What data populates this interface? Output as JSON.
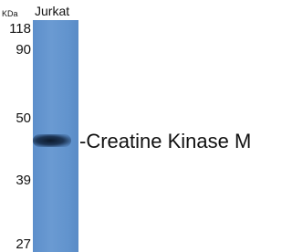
{
  "header": {
    "unit": "KDa",
    "sample": "Jurkat"
  },
  "markers": [
    118,
    90,
    50,
    39,
    27
  ],
  "band_label": "-Creatine Kinase M"
}
